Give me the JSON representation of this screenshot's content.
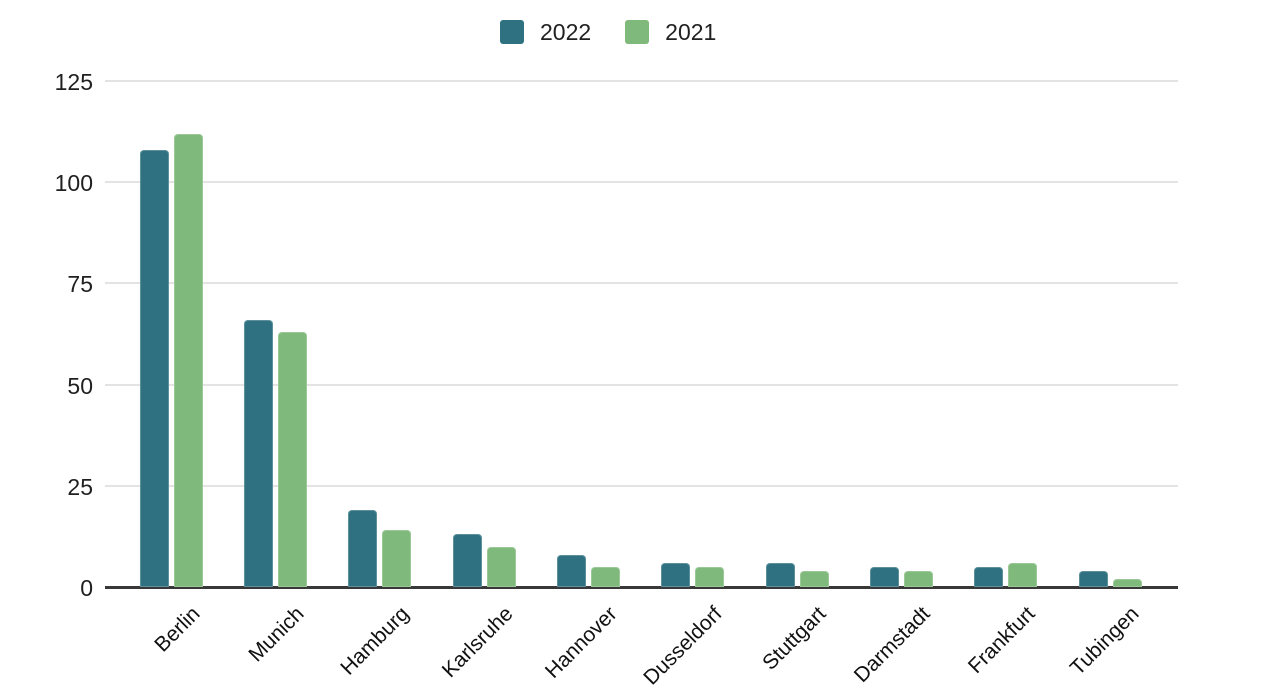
{
  "chart_data": {
    "type": "bar",
    "title": "",
    "xlabel": "",
    "ylabel": "",
    "categories": [
      "Berlin",
      "Munich",
      "Hamburg",
      "Karlsruhe",
      "Hannover",
      "Dusseldorf",
      "Stuttgart",
      "Darmstadt",
      "Frankfurt",
      "Tubingen"
    ],
    "series": [
      {
        "name": "2022",
        "color": "#2F7180",
        "values": [
          108,
          66,
          19,
          13,
          8,
          6,
          6,
          5,
          5,
          4
        ]
      },
      {
        "name": "2021",
        "color": "#80B97C",
        "values": [
          112,
          63,
          14,
          10,
          5,
          5,
          4,
          4,
          6,
          2
        ]
      }
    ],
    "ylim": [
      0,
      125
    ],
    "yticks": [
      0,
      25,
      50,
      75,
      100,
      125
    ],
    "grid": true,
    "legend_position": "top-center",
    "x_label_rotation_deg": -45,
    "gridline_color": "#e3e3e3",
    "axis_line_color": "#383838",
    "background_color": "#ffffff"
  }
}
